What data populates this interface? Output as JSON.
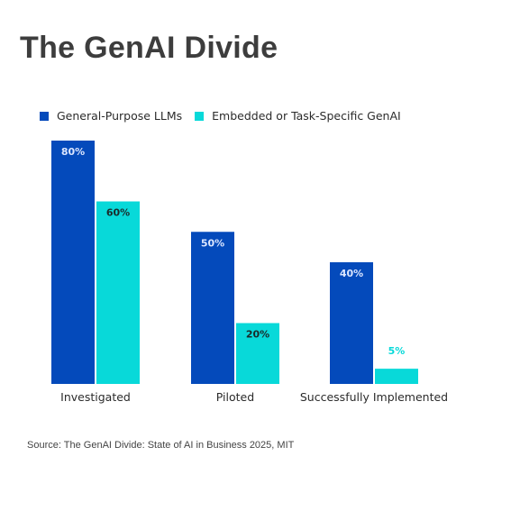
{
  "title": "The GenAI Divide",
  "source": "Source: The GenAI Divide: State of AI in Business 2025, MIT",
  "chart_data": {
    "type": "bar",
    "categories": [
      "Investigated",
      "Piloted",
      "Successfully Implemented"
    ],
    "series": [
      {
        "name": "General-Purpose LLMs",
        "values": [
          80,
          50,
          40
        ],
        "labels": [
          "80%",
          "50%",
          "40%"
        ],
        "color": "#044abb",
        "label_color": "#dbe6ff"
      },
      {
        "name": "Embedded or Task-Specific GenAI",
        "values": [
          60,
          20,
          5
        ],
        "labels": [
          "60%",
          "20%",
          "5%"
        ],
        "color": "#08d9d9",
        "label_color": "#1a2a2a"
      }
    ],
    "ylim": [
      0,
      80
    ],
    "grid": false,
    "legend": "top-left",
    "xlabel": "",
    "ylabel": ""
  }
}
